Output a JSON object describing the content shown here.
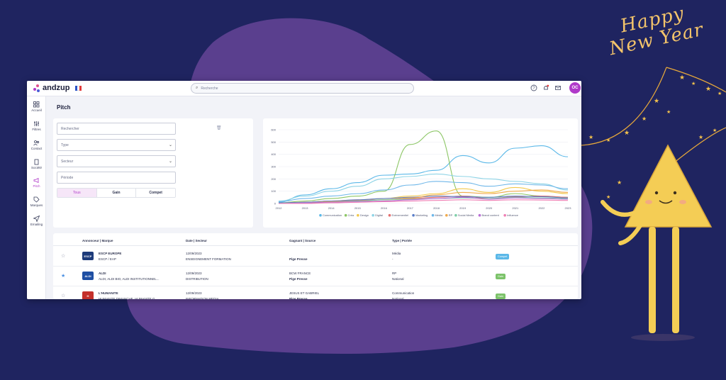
{
  "decor": {
    "greeting": "Happy New Year"
  },
  "app": {
    "brand": "andzup",
    "search_placeholder": "Recherche",
    "avatar_initials": "OC"
  },
  "sidebar": {
    "items": [
      {
        "label": "Accueil",
        "icon": "home-grid-icon"
      },
      {
        "label": "Filtres",
        "icon": "filter-icon"
      },
      {
        "label": "Contact",
        "icon": "contact-icon"
      },
      {
        "label": "Société",
        "icon": "building-icon"
      },
      {
        "label": "Pitch",
        "icon": "megaphone-icon",
        "active": true
      },
      {
        "label": "Marques",
        "icon": "tag-icon"
      },
      {
        "label": "Emailing",
        "icon": "send-icon"
      }
    ]
  },
  "page": {
    "title": "Pitch"
  },
  "filters": {
    "search_placeholder": "Rechercher",
    "type_placeholder": "Type",
    "sector_placeholder": "Secteur",
    "period_placeholder": "Période",
    "segments": [
      "Tous",
      "Gain",
      "Compet"
    ]
  },
  "chart_data": {
    "type": "line",
    "x": [
      2012,
      2013,
      2014,
      2015,
      2016,
      2017,
      2018,
      2019,
      2020,
      2021,
      2022,
      2023
    ],
    "ylim": [
      0,
      600
    ],
    "yticks": [
      0,
      100,
      200,
      300,
      400,
      500,
      600
    ],
    "legend_position": "bottom",
    "series": [
      {
        "name": "Communication",
        "color": "#5bb8e8",
        "values": [
          10,
          70,
          120,
          170,
          230,
          240,
          270,
          390,
          330,
          450,
          470,
          380
        ]
      },
      {
        "name": "Créa",
        "color": "#8cc665",
        "values": [
          5,
          20,
          40,
          60,
          100,
          480,
          590,
          60,
          50,
          80,
          60,
          50
        ]
      },
      {
        "name": "Design",
        "color": "#f2c84b",
        "values": [
          0,
          10,
          20,
          30,
          40,
          60,
          80,
          120,
          90,
          130,
          100,
          80
        ]
      },
      {
        "name": "Digital",
        "color": "#8fd4e6",
        "values": [
          20,
          60,
          100,
          140,
          200,
          220,
          240,
          220,
          200,
          180,
          160,
          110
        ]
      },
      {
        "name": "Evénementiel",
        "color": "#e46f6f",
        "values": [
          0,
          10,
          20,
          25,
          30,
          40,
          50,
          60,
          40,
          55,
          60,
          50
        ]
      },
      {
        "name": "Marketing",
        "color": "#5a7ec8",
        "values": [
          5,
          10,
          20,
          30,
          40,
          50,
          60,
          55,
          50,
          60,
          55,
          45
        ]
      },
      {
        "name": "Média",
        "color": "#6fb7e9",
        "values": [
          15,
          40,
          60,
          80,
          110,
          150,
          180,
          170,
          140,
          160,
          150,
          120
        ]
      },
      {
        "name": "RP",
        "color": "#f0a94b",
        "values": [
          0,
          5,
          15,
          20,
          30,
          45,
          70,
          90,
          80,
          100,
          110,
          90
        ]
      },
      {
        "name": "Social Media",
        "color": "#7ecfa8",
        "values": [
          0,
          5,
          10,
          20,
          30,
          35,
          40,
          45,
          40,
          50,
          45,
          40
        ]
      },
      {
        "name": "Brand content",
        "color": "#b96fd6",
        "values": [
          0,
          5,
          10,
          15,
          20,
          30,
          40,
          50,
          35,
          45,
          40,
          35
        ]
      },
      {
        "name": "Influence",
        "color": "#ef7fb4",
        "values": [
          0,
          0,
          5,
          10,
          15,
          20,
          25,
          30,
          25,
          30,
          28,
          25
        ]
      }
    ]
  },
  "table": {
    "headers": [
      "Annonceur | Marque",
      "Date | Secteur",
      "Gagnant | Source",
      "Type | Portée"
    ],
    "rows": [
      {
        "starred": false,
        "logo_text": "ESCP",
        "logo_color": "#1d3b7a",
        "advertiser": "ESCP EUROPE",
        "brand": "ESCP / EAP",
        "date": "12/09/2023",
        "sector": "ENSEIGNEMENT FORMATION",
        "winner": "",
        "source": "Pige Presse",
        "type": "Média",
        "scope": "-",
        "badge": "Compet",
        "badge_color": "#5bb8e8"
      },
      {
        "starred": true,
        "logo_text": "ALDI",
        "logo_color": "#1f4fa3",
        "advertiser": "ALDI",
        "brand": "ALDI, ALDI BIO, ALDI INSTITUTIONNEL...",
        "date": "12/09/2023",
        "sector": "DISTRIBUTION",
        "winner": "BCW FRANCE",
        "source": "Pige Presse",
        "type": "RP",
        "scope": "National",
        "badge": "Gain",
        "badge_color": "#7cc36a"
      },
      {
        "starred": false,
        "logo_text": "H",
        "logo_color": "#c4302b",
        "advertiser": "L'HUMANITE",
        "brand": "HUMANITE DIMANCHE, HUMANITE G...",
        "date": "12/09/2023",
        "sector": "INFORMATION MEDIA",
        "winner": "JESUS ET GABRIEL",
        "source": "Pige Presse",
        "type": "Communication",
        "scope": "National",
        "badge": "Gain",
        "badge_color": "#7cc36a"
      }
    ]
  }
}
